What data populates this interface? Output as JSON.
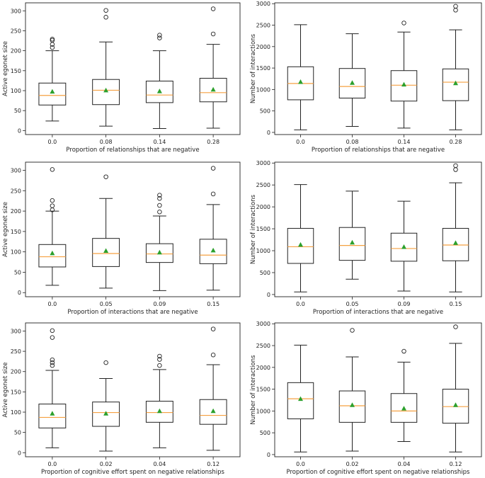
{
  "colors": {
    "box": "#222222",
    "median": "#f5a142",
    "mean": "#2ca02c",
    "flier": "#222222"
  },
  "chart_data": [
    {
      "type": "box",
      "xlabel": "Proportion of relationships that are negative",
      "ylabel": "Active egonet size",
      "ylim": [
        -10,
        320
      ],
      "yticks": [
        0,
        50,
        100,
        150,
        200,
        250,
        300
      ],
      "categories": [
        "0.0",
        "0.08",
        "0.14",
        "0.28"
      ],
      "boxes": [
        {
          "whislo": 24,
          "q1": 64,
          "med": 88,
          "q3": 119,
          "whishi": 200,
          "mean": 98,
          "fliers": [
            208,
            216,
            226,
            229
          ]
        },
        {
          "whislo": 11,
          "q1": 65,
          "med": 101,
          "q3": 128,
          "whishi": 222,
          "mean": 101,
          "fliers": [
            284,
            301
          ]
        },
        {
          "whislo": 5,
          "q1": 70,
          "med": 89,
          "q3": 124,
          "whishi": 200,
          "mean": 99,
          "fliers": [
            232,
            239
          ]
        },
        {
          "whislo": 6,
          "q1": 72,
          "med": 95,
          "q3": 131,
          "whishi": 216,
          "mean": 103,
          "fliers": [
            242,
            305
          ]
        }
      ]
    },
    {
      "type": "box",
      "xlabel": "Proportion of relationships that are negative",
      "ylabel": "Number of interactions",
      "ylim": [
        -50,
        3020
      ],
      "yticks": [
        0,
        500,
        1000,
        1500,
        2000,
        2500,
        3000
      ],
      "categories": [
        "0.0",
        "0.08",
        "0.14",
        "0.28"
      ],
      "boxes": [
        {
          "whislo": 60,
          "q1": 760,
          "med": 1140,
          "q3": 1530,
          "whishi": 2510,
          "mean": 1180,
          "fliers": []
        },
        {
          "whislo": 140,
          "q1": 800,
          "med": 1070,
          "q3": 1490,
          "whishi": 2300,
          "mean": 1160,
          "fliers": []
        },
        {
          "whislo": 100,
          "q1": 730,
          "med": 1100,
          "q3": 1440,
          "whishi": 2340,
          "mean": 1120,
          "fliers": [
            2550
          ]
        },
        {
          "whislo": 60,
          "q1": 740,
          "med": 1170,
          "q3": 1480,
          "whishi": 2390,
          "mean": 1150,
          "fliers": [
            2850,
            2940
          ]
        }
      ]
    },
    {
      "type": "box",
      "xlabel": "Proportion of interactions that are negative",
      "ylabel": "Active egonet size",
      "ylim": [
        -10,
        320
      ],
      "yticks": [
        0,
        50,
        100,
        150,
        200,
        250,
        300
      ],
      "categories": [
        "0.0",
        "0.05",
        "0.09",
        "0.15"
      ],
      "boxes": [
        {
          "whislo": 18,
          "q1": 63,
          "med": 88,
          "q3": 118,
          "whishi": 200,
          "mean": 97,
          "fliers": [
            203,
            213,
            226,
            302
          ]
        },
        {
          "whislo": 11,
          "q1": 64,
          "med": 96,
          "q3": 133,
          "whishi": 231,
          "mean": 103,
          "fliers": [
            284
          ]
        },
        {
          "whislo": 5,
          "q1": 74,
          "med": 95,
          "q3": 120,
          "whishi": 188,
          "mean": 99,
          "fliers": [
            198,
            214,
            231,
            239
          ]
        },
        {
          "whislo": 6,
          "q1": 71,
          "med": 92,
          "q3": 131,
          "whishi": 216,
          "mean": 104,
          "fliers": [
            242,
            305
          ]
        }
      ]
    },
    {
      "type": "box",
      "xlabel": "Proportion of interactions that are negative",
      "ylabel": "Number of interactions",
      "ylim": [
        -50,
        3020
      ],
      "yticks": [
        0,
        500,
        1000,
        1500,
        2000,
        2500,
        3000
      ],
      "categories": [
        "0.0",
        "0.05",
        "0.09",
        "0.15"
      ],
      "boxes": [
        {
          "whislo": 60,
          "q1": 710,
          "med": 1090,
          "q3": 1510,
          "whishi": 2510,
          "mean": 1140,
          "fliers": []
        },
        {
          "whislo": 350,
          "q1": 780,
          "med": 1120,
          "q3": 1530,
          "whishi": 2360,
          "mean": 1190,
          "fliers": []
        },
        {
          "whislo": 80,
          "q1": 760,
          "med": 1050,
          "q3": 1400,
          "whishi": 2130,
          "mean": 1090,
          "fliers": []
        },
        {
          "whislo": 60,
          "q1": 770,
          "med": 1130,
          "q3": 1510,
          "whishi": 2550,
          "mean": 1180,
          "fliers": [
            2850,
            2940
          ]
        }
      ]
    },
    {
      "type": "box",
      "xlabel": "Proportion of cognitive effort spent on negative relationships",
      "ylabel": "Active egonet size",
      "ylim": [
        -10,
        320
      ],
      "yticks": [
        0,
        50,
        100,
        150,
        200,
        250,
        300
      ],
      "categories": [
        "0.0",
        "0.02",
        "0.04",
        "0.12"
      ],
      "boxes": [
        {
          "whislo": 12,
          "q1": 61,
          "med": 87,
          "q3": 120,
          "whishi": 203,
          "mean": 97,
          "fliers": [
            215,
            222,
            229,
            284,
            301
          ]
        },
        {
          "whislo": 4,
          "q1": 65,
          "med": 99,
          "q3": 125,
          "whishi": 183,
          "mean": 97,
          "fliers": [
            222
          ]
        },
        {
          "whislo": 12,
          "q1": 75,
          "med": 99,
          "q3": 127,
          "whishi": 205,
          "mean": 103,
          "fliers": [
            215,
            230,
            238
          ]
        },
        {
          "whislo": 6,
          "q1": 70,
          "med": 92,
          "q3": 131,
          "whishi": 217,
          "mean": 103,
          "fliers": [
            241,
            305
          ]
        }
      ]
    },
    {
      "type": "box",
      "xlabel": "Proportion of cognitive effort spent on negative relationships",
      "ylabel": "Number of interactions",
      "ylim": [
        -50,
        3020
      ],
      "yticks": [
        0,
        500,
        1000,
        1500,
        2000,
        2500,
        3000
      ],
      "categories": [
        "0.0",
        "0.02",
        "0.04",
        "0.12"
      ],
      "boxes": [
        {
          "whislo": 60,
          "q1": 820,
          "med": 1280,
          "q3": 1650,
          "whishi": 2510,
          "mean": 1280,
          "fliers": []
        },
        {
          "whislo": 80,
          "q1": 740,
          "med": 1120,
          "q3": 1460,
          "whishi": 2240,
          "mean": 1140,
          "fliers": [
            2850
          ]
        },
        {
          "whislo": 300,
          "q1": 740,
          "med": 1000,
          "q3": 1400,
          "whishi": 2120,
          "mean": 1060,
          "fliers": [
            2370
          ]
        },
        {
          "whislo": 60,
          "q1": 720,
          "med": 1100,
          "q3": 1500,
          "whishi": 2550,
          "mean": 1140,
          "fliers": [
            2930
          ]
        }
      ]
    }
  ]
}
